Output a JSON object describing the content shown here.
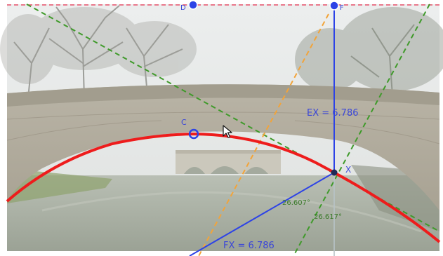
{
  "construction": {
    "point_top_left_label": "D",
    "point_top_right_label": "F",
    "point_vertex_label": "C",
    "point_x_label": "X",
    "ex_measure": "EX = 6.786",
    "fx_measure": "FX = 6.786",
    "angle_a": "26.607°",
    "angle_b": "26.617°"
  },
  "colors": {
    "parabola": "#ee1c1c",
    "directrix": "#e8506a",
    "blue": "#2d43e6",
    "green": "#3f9a2a",
    "orange": "#f2a43a",
    "label_blue": "#3a46d8",
    "label_green": "#3a7a2a"
  },
  "icons": {
    "cursor": "mouse-pointer-icon"
  }
}
